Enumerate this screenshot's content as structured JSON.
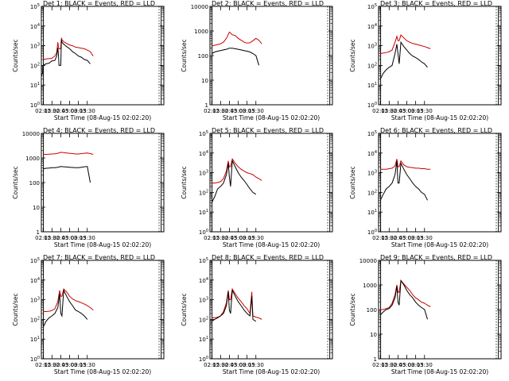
{
  "figure": {
    "panels": [
      {
        "title": "Det 1: BLACK = Events, RED = LLD",
        "decades": [
          0,
          5
        ],
        "ytype": "exp"
      },
      {
        "title": "Det 2: BLACK = Events, RED = LLD",
        "decades": [
          0,
          4
        ],
        "ytype": "plain"
      },
      {
        "title": "Det 3: BLACK = Events, RED = LLD",
        "decades": [
          0,
          5
        ],
        "ytype": "exp"
      },
      {
        "title": "Det 4: BLACK = Events, RED = LLD",
        "decades": [
          0,
          4
        ],
        "ytype": "plain"
      },
      {
        "title": "Det 5: BLACK = Events, RED = LLD",
        "decades": [
          0,
          5
        ],
        "ytype": "exp"
      },
      {
        "title": "Det 6: BLACK = Events, RED = LLD",
        "decades": [
          0,
          5
        ],
        "ytype": "exp"
      },
      {
        "title": "Det 7: BLACK = Events, RED = LLD",
        "decades": [
          0,
          5
        ],
        "ytype": "exp"
      },
      {
        "title": "Det 8: BLACK = Events, RED = LLD",
        "decades": [
          0,
          5
        ],
        "ytype": "exp"
      },
      {
        "title": "Det 9: BLACK = Events, RED = LLD",
        "decades": [
          0,
          4
        ],
        "ytype": "plain"
      }
    ],
    "xlabel": "Start Time (08-Aug-15 02:02:20)",
    "ylabel": "Counts/sec",
    "xticks": [
      "02:15",
      "02:30",
      "02:45",
      "03:00",
      "03:15",
      "03:30"
    ],
    "colors": {
      "events": "#000000",
      "lld": "#cc0000"
    }
  },
  "chart_data": [
    {
      "type": "line",
      "title": "Det 1: BLACK = Events, RED = LLD",
      "xlabel": "Start Time (08-Aug-15 02:02:20)",
      "ylabel": "Counts/sec",
      "yscale": "log",
      "ylim": [
        1,
        100000
      ],
      "x": [
        "02:12",
        "02:14",
        "02:15",
        "02:20",
        "02:25",
        "02:30",
        "02:35",
        "02:38",
        "02:40",
        "02:41",
        "02:42",
        "02:45",
        "02:46",
        "02:47",
        "02:50",
        "02:55",
        "03:00",
        "03:05",
        "03:10",
        "03:15",
        "03:20",
        "03:25",
        "03:30",
        "03:35",
        "03:40"
      ],
      "series": [
        {
          "name": "Events",
          "values": [
            30,
            40,
            100,
            120,
            130,
            170,
            180,
            300,
            800,
            350,
            100,
            100,
            2000,
            1500,
            1200,
            900,
            700,
            500,
            400,
            300,
            260,
            200,
            180,
            120,
            null
          ]
        },
        {
          "name": "LLD",
          "values": [
            null,
            null,
            200,
            210,
            220,
            230,
            300,
            450,
            1500,
            900,
            700,
            700,
            2500,
            2000,
            1600,
            1300,
            1100,
            1000,
            850,
            800,
            750,
            700,
            600,
            500,
            300
          ]
        }
      ]
    },
    {
      "type": "line",
      "title": "Det 2: BLACK = Events, RED = LLD",
      "xlabel": "Start Time (08-Aug-15 02:02:20)",
      "ylabel": "Counts/sec",
      "yscale": "log",
      "ylim": [
        1,
        10000
      ],
      "x": [
        "02:12",
        "02:15",
        "02:20",
        "02:25",
        "02:30",
        "02:35",
        "02:40",
        "02:45",
        "02:50",
        "02:55",
        "03:00",
        "03:05",
        "03:10",
        "03:15",
        "03:20",
        "03:25",
        "03:30",
        "03:35",
        "03:40"
      ],
      "series": [
        {
          "name": "Events",
          "values": [
            null,
            120,
            140,
            150,
            160,
            170,
            180,
            200,
            200,
            190,
            180,
            170,
            160,
            150,
            140,
            120,
            100,
            40,
            null
          ]
        },
        {
          "name": "LLD",
          "values": [
            null,
            250,
            260,
            280,
            300,
            350,
            500,
            900,
            700,
            650,
            500,
            420,
            350,
            320,
            330,
            400,
            500,
            420,
            300
          ]
        }
      ]
    },
    {
      "type": "line",
      "title": "Det 3: BLACK = Events, RED = LLD",
      "xlabel": "Start Time (08-Aug-15 02:02:20)",
      "ylabel": "Counts/sec",
      "yscale": "log",
      "ylim": [
        1,
        100000
      ],
      "x": [
        "02:12",
        "02:15",
        "02:20",
        "02:25",
        "02:30",
        "02:35",
        "02:40",
        "02:43",
        "02:45",
        "02:47",
        "02:50",
        "02:55",
        "03:00",
        "03:05",
        "03:10",
        "03:15",
        "03:20",
        "03:25",
        "03:30",
        "03:35",
        "03:40"
      ],
      "series": [
        {
          "name": "Events",
          "values": [
            null,
            20,
            40,
            60,
            80,
            100,
            400,
            1200,
            400,
            120,
            1500,
            900,
            600,
            400,
            300,
            250,
            200,
            150,
            120,
            80,
            null
          ]
        },
        {
          "name": "LLD",
          "values": [
            null,
            400,
            420,
            450,
            500,
            600,
            1500,
            3000,
            1800,
            1800,
            3500,
            2500,
            1800,
            1500,
            1300,
            1200,
            1100,
            1000,
            900,
            800,
            700
          ]
        }
      ]
    },
    {
      "type": "line",
      "title": "Det 4: BLACK = Events, RED = LLD",
      "xlabel": "Start Time (08-Aug-15 02:02:20)",
      "ylabel": "Counts/sec",
      "yscale": "log",
      "ylim": [
        1,
        10000
      ],
      "x": [
        "02:12",
        "02:15",
        "02:20",
        "02:25",
        "02:30",
        "02:35",
        "02:40",
        "02:45",
        "02:50",
        "02:55",
        "03:00",
        "03:05",
        "03:10",
        "03:15",
        "03:20",
        "03:25",
        "03:30",
        "03:35",
        "03:40"
      ],
      "series": [
        {
          "name": "Events",
          "values": [
            null,
            360,
            380,
            390,
            400,
            400,
            420,
            450,
            440,
            430,
            420,
            410,
            400,
            400,
            420,
            440,
            450,
            100,
            null
          ]
        },
        {
          "name": "LLD",
          "values": [
            null,
            1400,
            1400,
            1420,
            1450,
            1480,
            1550,
            1700,
            1650,
            1600,
            1550,
            1500,
            1450,
            1450,
            1500,
            1550,
            1600,
            1500,
            1400
          ]
        }
      ]
    },
    {
      "type": "line",
      "title": "Det 5: BLACK = Events, RED = LLD",
      "xlabel": "Start Time (08-Aug-15 02:02:20)",
      "ylabel": "Counts/sec",
      "yscale": "log",
      "ylim": [
        1,
        100000
      ],
      "x": [
        "02:12",
        "02:15",
        "02:20",
        "02:25",
        "02:30",
        "02:35",
        "02:40",
        "02:43",
        "02:45",
        "02:47",
        "02:50",
        "02:55",
        "03:00",
        "03:05",
        "03:10",
        "03:15",
        "03:20",
        "03:25",
        "03:30",
        "03:35",
        "03:40"
      ],
      "series": [
        {
          "name": "Events",
          "values": [
            null,
            30,
            60,
            150,
            200,
            300,
            800,
            3000,
            600,
            200,
            4000,
            2000,
            1000,
            600,
            400,
            250,
            150,
            100,
            80,
            null,
            null
          ]
        },
        {
          "name": "LLD",
          "values": [
            null,
            300,
            300,
            320,
            350,
            500,
            1200,
            4000,
            2000,
            2000,
            5000,
            3000,
            2000,
            1500,
            1200,
            1000,
            900,
            800,
            600,
            500,
            400
          ]
        }
      ]
    },
    {
      "type": "line",
      "title": "Det 6: BLACK = Events, RED = LLD",
      "xlabel": "Start Time (08-Aug-15 02:02:20)",
      "ylabel": "Counts/sec",
      "yscale": "log",
      "ylim": [
        1,
        100000
      ],
      "x": [
        "02:12",
        "02:15",
        "02:20",
        "02:25",
        "02:30",
        "02:35",
        "02:40",
        "02:43",
        "02:45",
        "02:47",
        "02:50",
        "02:55",
        "03:00",
        "03:05",
        "03:10",
        "03:15",
        "03:20",
        "03:25",
        "03:30",
        "03:35",
        "03:40"
      ],
      "series": [
        {
          "name": "Events",
          "values": [
            null,
            40,
            80,
            150,
            200,
            300,
            800,
            4000,
            300,
            300,
            3000,
            1500,
            800,
            500,
            300,
            200,
            150,
            100,
            80,
            40,
            null
          ]
        },
        {
          "name": "LLD",
          "values": [
            null,
            1500,
            1500,
            1500,
            1600,
            1700,
            2200,
            5000,
            2000,
            2000,
            4000,
            2500,
            2000,
            1900,
            1800,
            1700,
            1700,
            1600,
            1600,
            1500,
            1500
          ]
        }
      ]
    },
    {
      "type": "line",
      "title": "Det 7: BLACK = Events, RED = LLD",
      "xlabel": "Start Time (08-Aug-15 02:02:20)",
      "ylabel": "Counts/sec",
      "yscale": "log",
      "ylim": [
        1,
        100000
      ],
      "x": [
        "02:12",
        "02:15",
        "02:20",
        "02:25",
        "02:30",
        "02:35",
        "02:40",
        "02:43",
        "02:45",
        "02:47",
        "02:50",
        "02:55",
        "03:00",
        "03:05",
        "03:10",
        "03:15",
        "03:20",
        "03:25",
        "03:30",
        "03:35",
        "03:40"
      ],
      "series": [
        {
          "name": "Events",
          "values": [
            null,
            40,
            80,
            120,
            150,
            200,
            400,
            2000,
            200,
            150,
            3000,
            1500,
            800,
            500,
            300,
            250,
            200,
            150,
            100,
            null,
            null
          ]
        },
        {
          "name": "LLD",
          "values": [
            null,
            250,
            250,
            260,
            280,
            350,
            800,
            3000,
            1500,
            1500,
            3500,
            2500,
            1500,
            1100,
            900,
            800,
            700,
            600,
            500,
            400,
            300
          ]
        }
      ]
    },
    {
      "type": "line",
      "title": "Det 8: BLACK = Events, RED = LLD",
      "xlabel": "Start Time (08-Aug-15 02:02:20)",
      "ylabel": "Counts/sec",
      "yscale": "log",
      "ylim": [
        1,
        100000
      ],
      "x": [
        "02:12",
        "02:15",
        "02:20",
        "02:25",
        "02:30",
        "02:35",
        "02:40",
        "02:43",
        "02:45",
        "02:47",
        "02:50",
        "02:55",
        "03:00",
        "03:05",
        "03:10",
        "03:15",
        "03:20",
        "03:23",
        "03:25",
        "03:30",
        "03:35",
        "03:40"
      ],
      "series": [
        {
          "name": "Events",
          "values": [
            null,
            80,
            100,
            120,
            150,
            200,
            500,
            2500,
            300,
            200,
            3000,
            1500,
            800,
            500,
            300,
            200,
            150,
            1500,
            100,
            80,
            null,
            null
          ]
        },
        {
          "name": "LLD",
          "values": [
            null,
            120,
            120,
            130,
            150,
            250,
            700,
            3000,
            1000,
            1000,
            3500,
            2000,
            1200,
            800,
            500,
            350,
            200,
            2500,
            150,
            130,
            120,
            100
          ]
        }
      ]
    },
    {
      "type": "line",
      "title": "Det 9: BLACK = Events, RED = LLD",
      "xlabel": "Start Time (08-Aug-15 02:02:20)",
      "ylabel": "Counts/sec",
      "yscale": "log",
      "ylim": [
        1,
        10000
      ],
      "x": [
        "02:12",
        "02:15",
        "02:20",
        "02:25",
        "02:30",
        "02:35",
        "02:40",
        "02:43",
        "02:45",
        "02:47",
        "02:50",
        "02:55",
        "03:00",
        "03:05",
        "03:10",
        "03:15",
        "03:20",
        "03:25",
        "03:30",
        "03:35",
        "03:40"
      ],
      "series": [
        {
          "name": "Events",
          "values": [
            null,
            60,
            80,
            100,
            110,
            150,
            300,
            900,
            200,
            150,
            1500,
            1000,
            600,
            400,
            300,
            200,
            150,
            120,
            100,
            40,
            null
          ]
        },
        {
          "name": "LLD",
          "values": [
            null,
            100,
            100,
            110,
            120,
            180,
            400,
            1000,
            500,
            500,
            1500,
            1100,
            800,
            600,
            400,
            300,
            250,
            200,
            180,
            150,
            130
          ]
        }
      ]
    }
  ]
}
